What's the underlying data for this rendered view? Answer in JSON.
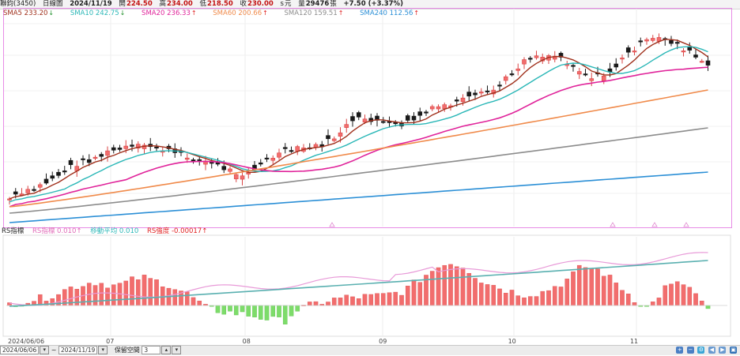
{
  "header": {
    "stock": "聯鈞(3450)",
    "period": "日線圖",
    "date": "2024/11/19",
    "open_label": "開",
    "open": "224.50",
    "high_label": "高",
    "high": "234.00",
    "low_label": "低",
    "low": "218.50",
    "close_label": "收",
    "close": "230.00",
    "unit_a": "s",
    "unit_b": "元",
    "volume_label": "量",
    "volume": "29476",
    "volume_unit": "張",
    "change": "+7.50 (+3.37%)"
  },
  "legend": [
    {
      "label": "SMA5",
      "value": "233.20",
      "arrow": "↓",
      "color": "#a0301c",
      "arrow_color": "#1f8f2a"
    },
    {
      "label": "SMA10",
      "value": "242.75",
      "arrow": "↓",
      "color": "#2ab7b7",
      "arrow_color": "#1f8f2a"
    },
    {
      "label": "SMA20",
      "value": "236.33",
      "arrow": "↑",
      "color": "#e0239a",
      "arrow_color": "#e02020"
    },
    {
      "label": "SMA60",
      "value": "200.66",
      "arrow": "↑",
      "color": "#f08a4a",
      "arrow_color": "#e02020"
    },
    {
      "label": "SMA120",
      "value": "159.51",
      "arrow": "↑",
      "color": "#8c8c8c",
      "arrow_color": "#e02020"
    },
    {
      "label": "SMA240",
      "value": "112.56",
      "arrow": "↑",
      "color": "#2b8fd6",
      "arrow_color": "#e02020"
    }
  ],
  "indicator": {
    "name": "RS指標",
    "items": [
      {
        "label": "RS指標",
        "value": "0.010",
        "arrow": "↑",
        "color": "#e06ab7"
      },
      {
        "label": "移動平均",
        "value": "0.010",
        "arrow": "",
        "color": "#2ab7b7"
      },
      {
        "label": "RS強度",
        "value": "-0.00017",
        "arrow": "↑",
        "color": "#e02020"
      }
    ]
  },
  "x_labels": [
    {
      "text": "2024/06/06",
      "x": 0.0
    },
    {
      "text": "07",
      "x": 0.14
    },
    {
      "text": "08",
      "x": 0.33
    },
    {
      "text": "09",
      "x": 0.52
    },
    {
      "text": "10",
      "x": 0.7
    },
    {
      "text": "11",
      "x": 0.87
    }
  ],
  "footer": {
    "date_from": "2024/06/06",
    "date_to": "2024/11/19",
    "tilde": "~",
    "keep_label": "保留空間",
    "keep_value": "3"
  },
  "colors": {
    "up": "#f26d6d",
    "down": "#1a1a1a",
    "rs_pos": "#f26d6d",
    "rs_neg": "#7ddc6a",
    "rs_line": "#e89ad8",
    "rs_ma": "#5ab0b0"
  }
}
